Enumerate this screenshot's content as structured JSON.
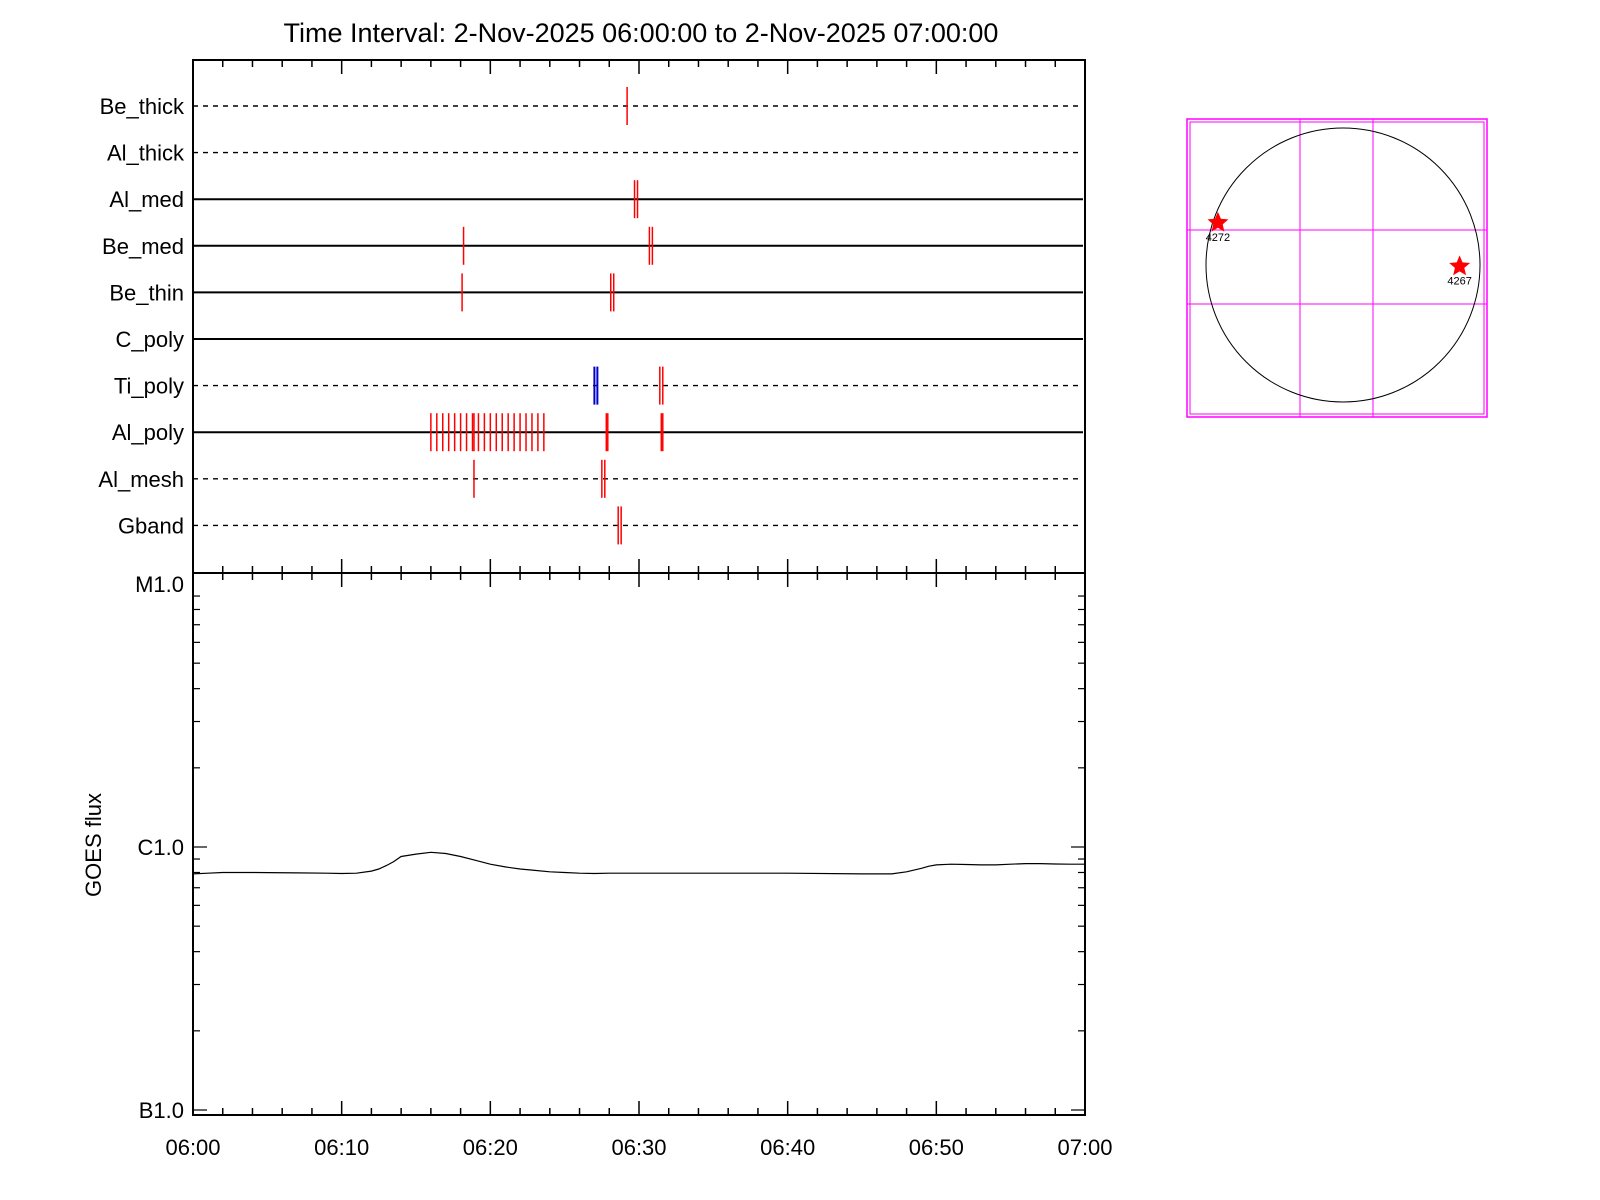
{
  "title": "Time Interval:  2-Nov-2025 06:00:00 to  2-Nov-2025 07:00:00",
  "colors": {
    "axis": "#000000",
    "event": "#ff0000",
    "event_blue": "#0000cc",
    "flux": "#000000",
    "sun_limb": "#000000",
    "grid": "#ff00ff",
    "marker": "#ff0000"
  },
  "chart_data": [
    {
      "type": "scatter",
      "subtype": "event-timeline",
      "title": "Time Interval:  2-Nov-2025 06:00:00 to  2-Nov-2025 07:00:00",
      "x_range_minutes": [
        0,
        60
      ],
      "tick_labels": [
        "06:00",
        "06:10",
        "06:20",
        "06:30",
        "06:40",
        "06:50",
        "07:00"
      ],
      "rows": [
        {
          "name": "Be_thick",
          "line": "dashed",
          "events": [
            29.2
          ]
        },
        {
          "name": "Al_thick",
          "line": "dashed",
          "events": []
        },
        {
          "name": "Al_med",
          "line": "solid",
          "events": [
            29.7,
            29.9
          ]
        },
        {
          "name": "Be_med",
          "line": "solid",
          "events": [
            18.2,
            30.7,
            30.9
          ]
        },
        {
          "name": "Be_thin",
          "line": "solid",
          "events": [
            18.1,
            28.1,
            28.3
          ]
        },
        {
          "name": "C_poly",
          "line": "solid",
          "events": []
        },
        {
          "name": "Ti_poly",
          "line": "dashed",
          "events": [
            31.4,
            31.6
          ],
          "events_blue": [
            27.0,
            27.2
          ]
        },
        {
          "name": "Al_poly",
          "line": "solid",
          "events": [
            16.0,
            16.4,
            16.8,
            17.2,
            17.6,
            18.0,
            18.4,
            18.8,
            18.9,
            19.2,
            19.6,
            20.0,
            20.4,
            20.8,
            21.2,
            21.6,
            22.0,
            22.4,
            22.8,
            23.2,
            23.6,
            27.8,
            27.9,
            31.5,
            31.6
          ]
        },
        {
          "name": "Al_mesh",
          "line": "dashed",
          "events": [
            18.9,
            27.5,
            27.7
          ]
        },
        {
          "name": "Gband",
          "line": "dashed",
          "events": [
            28.6,
            28.8
          ]
        }
      ]
    },
    {
      "type": "line",
      "ylabel": "GOES flux",
      "yscale": "log",
      "ylim": [
        1e-07,
        1e-05
      ],
      "y_tick_labels": [
        {
          "label": "M1.0",
          "value": 1e-05
        },
        {
          "label": "C1.0",
          "value": 1e-06
        },
        {
          "label": "B1.0",
          "value": 1e-07
        }
      ],
      "x_range_minutes": [
        0,
        60
      ],
      "tick_labels": [
        "06:00",
        "06:10",
        "06:20",
        "06:30",
        "06:40",
        "06:50",
        "07:00"
      ],
      "series": [
        {
          "x": [
            0,
            1,
            2,
            4,
            7,
            9,
            10,
            11,
            12,
            12.5,
            13,
            13.5,
            14,
            15,
            16,
            17,
            18,
            19,
            20,
            21,
            22,
            23,
            24,
            25,
            26,
            27,
            28,
            30,
            35,
            40,
            45,
            47,
            48,
            49,
            49.5,
            50,
            51,
            52,
            53,
            54,
            55,
            56,
            57,
            58,
            59,
            60
          ],
          "y": [
            7.9e-07,
            7.95e-07,
            8e-07,
            8e-07,
            7.97e-07,
            7.95e-07,
            7.93e-07,
            7.95e-07,
            8.1e-07,
            8.25e-07,
            8.5e-07,
            8.8e-07,
            9.2e-07,
            9.4e-07,
            9.55e-07,
            9.45e-07,
            9.2e-07,
            8.9e-07,
            8.6e-07,
            8.4e-07,
            8.25e-07,
            8.15e-07,
            8.05e-07,
            8e-07,
            7.95e-07,
            7.93e-07,
            7.95e-07,
            7.95e-07,
            7.95e-07,
            7.95e-07,
            7.9e-07,
            7.9e-07,
            8.05e-07,
            8.3e-07,
            8.45e-07,
            8.55e-07,
            8.6e-07,
            8.58e-07,
            8.55e-07,
            8.55e-07,
            8.6e-07,
            8.65e-07,
            8.65e-07,
            8.62e-07,
            8.6e-07,
            8.6e-07
          ]
        }
      ]
    },
    {
      "type": "scatter",
      "subtype": "solar-disk-map",
      "markers": [
        {
          "label": "4272",
          "x": -890,
          "y": 300
        },
        {
          "label": "4267",
          "x": 830,
          "y": -10
        }
      ]
    }
  ]
}
